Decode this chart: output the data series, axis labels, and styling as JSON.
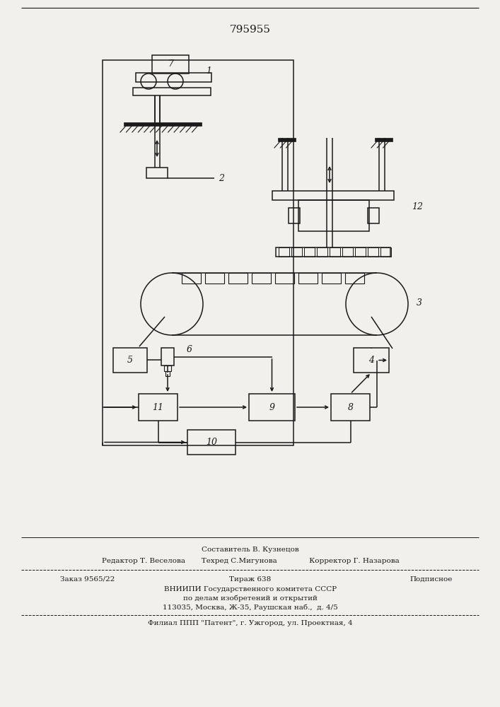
{
  "patent_num": "795955",
  "bg_color": "#f2f0ec",
  "lc": "#1a1a1a",
  "footer": {
    "line1": "Составитель В. Кузнецов",
    "line2": "Редактор Т. Веселова       Техред С.Мигунова              Корректор Г. Назарова",
    "line3a": "Заказ 9565/22",
    "line3b": "Тираж 638",
    "line3c": "Подписное",
    "line4": "ВНИИПИ Государственного комитета СССР",
    "line5": "по делам изобретений и открытий",
    "line6": "113035, Москва, Ж-35, Раушская наб.,  д. 4/5",
    "line7": "Филиал ППП \"Патент\", г. Ужгород, ул. Проектная, 4"
  }
}
